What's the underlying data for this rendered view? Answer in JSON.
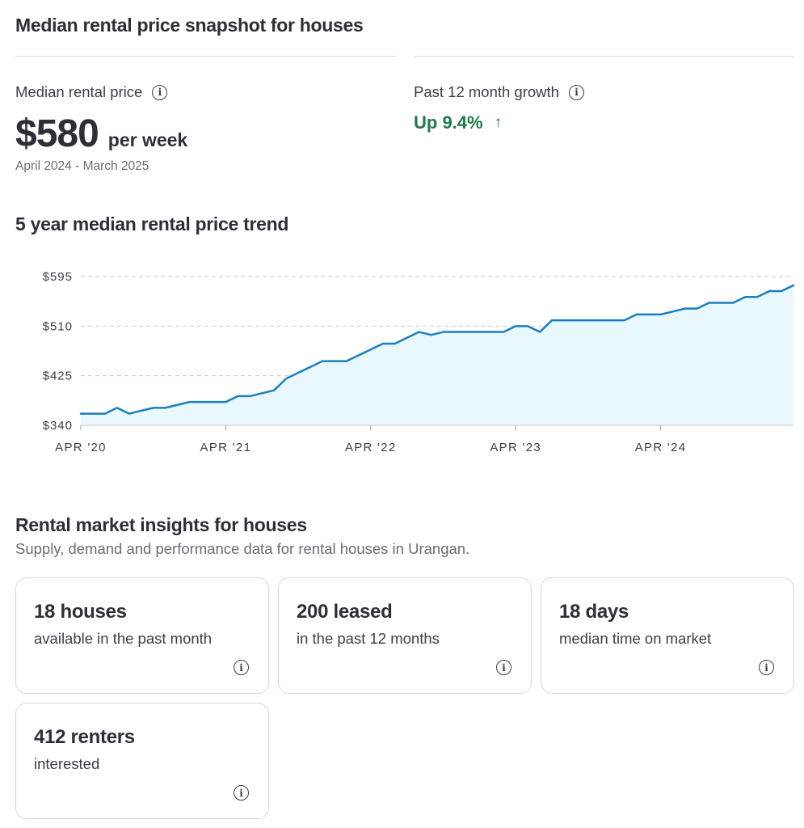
{
  "snapshot": {
    "title": "Median rental price snapshot for houses",
    "median_label": "Median rental price",
    "median_value": "$580",
    "median_unit": "per week",
    "period": "April 2024 - March 2025",
    "growth_label": "Past 12 month growth",
    "growth_value": "Up 9.4%",
    "growth_color": "#1d7a46"
  },
  "trend": {
    "title": "5 year median rental price trend"
  },
  "chart_data": {
    "type": "area",
    "title": "",
    "xlabel": "",
    "ylabel": "",
    "ylim": [
      340,
      595
    ],
    "y_ticks": [
      "$595",
      "$510",
      "$425",
      "$340"
    ],
    "y_tick_values": [
      595,
      510,
      425,
      340
    ],
    "x_ticks": [
      "APR '20",
      "APR '21",
      "APR '22",
      "APR '23",
      "APR '24"
    ],
    "grid": true,
    "line_color": "#1a7fbf",
    "fill_color": "#e8f8fc",
    "series": [
      {
        "x": [
          "2020-04",
          "2020-05",
          "2020-06",
          "2020-07",
          "2020-08",
          "2020-09",
          "2020-10",
          "2020-11",
          "2020-12",
          "2021-01",
          "2021-02",
          "2021-03",
          "2021-04",
          "2021-05",
          "2021-06",
          "2021-07",
          "2021-08",
          "2021-09",
          "2021-10",
          "2021-11",
          "2021-12",
          "2022-01",
          "2022-02",
          "2022-03",
          "2022-04",
          "2022-05",
          "2022-06",
          "2022-07",
          "2022-08",
          "2022-09",
          "2022-10",
          "2022-11",
          "2022-12",
          "2023-01",
          "2023-02",
          "2023-03",
          "2023-04",
          "2023-05",
          "2023-06",
          "2023-07",
          "2023-08",
          "2023-09",
          "2023-10",
          "2023-11",
          "2023-12",
          "2024-01",
          "2024-02",
          "2024-03",
          "2024-04",
          "2024-05",
          "2024-06",
          "2024-07",
          "2024-08",
          "2024-09",
          "2024-10",
          "2024-11",
          "2024-12",
          "2025-01",
          "2025-02",
          "2025-03"
        ],
        "values": [
          360,
          360,
          360,
          370,
          360,
          365,
          370,
          370,
          375,
          380,
          380,
          380,
          380,
          390,
          390,
          395,
          400,
          420,
          430,
          440,
          450,
          450,
          450,
          460,
          470,
          480,
          480,
          490,
          500,
          495,
          500,
          500,
          500,
          500,
          500,
          500,
          510,
          510,
          500,
          520,
          520,
          520,
          520,
          520,
          520,
          520,
          530,
          530,
          530,
          535,
          540,
          540,
          550,
          550,
          550,
          560,
          560,
          570,
          570,
          580
        ]
      }
    ]
  },
  "insights": {
    "title": "Rental market insights for houses",
    "subtitle": "Supply, demand and performance data for rental houses in Urangan.",
    "cards": [
      {
        "value": "18 houses",
        "desc": "available in the past month"
      },
      {
        "value": "200 leased",
        "desc": "in the past 12 months"
      },
      {
        "value": "18 days",
        "desc": "median time on market"
      },
      {
        "value": "412 renters",
        "desc": "interested"
      }
    ]
  },
  "icons": {
    "info": "info-icon",
    "growth_arrow": "arrow-up-icon",
    "info_glyph": "i",
    "arrow_glyph": "↑"
  }
}
